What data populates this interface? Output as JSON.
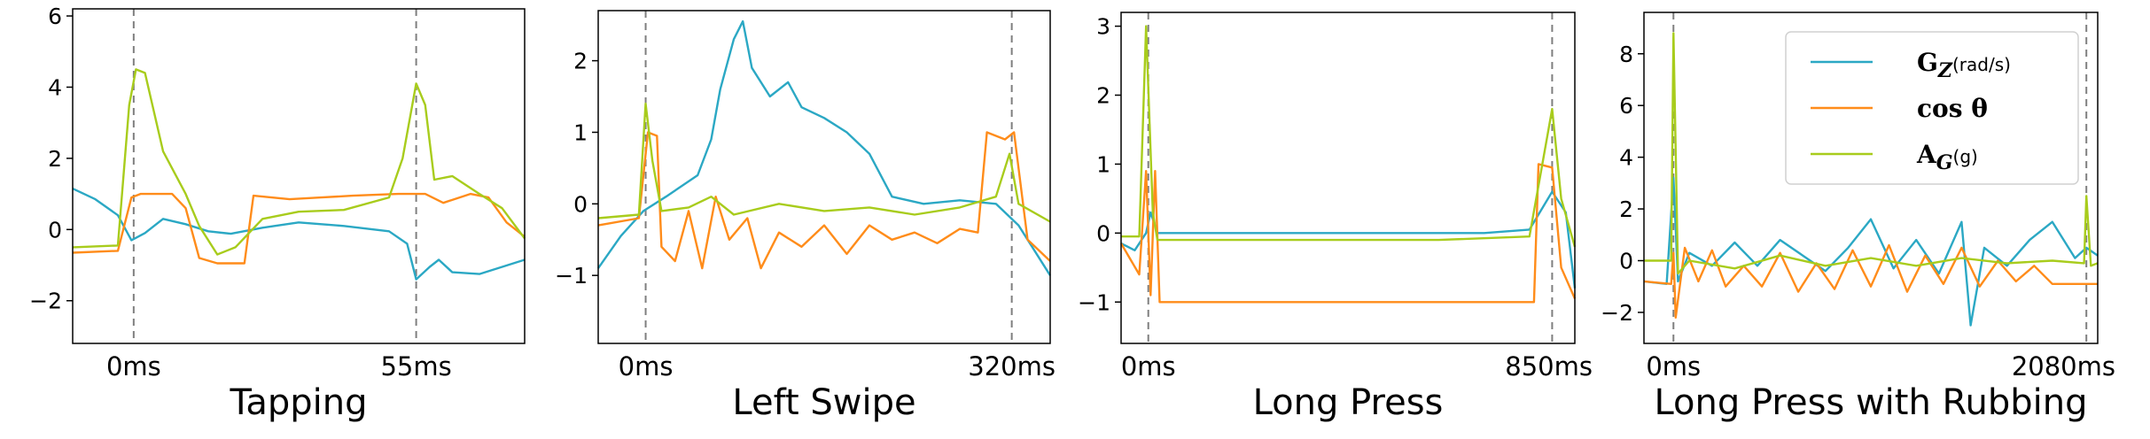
{
  "legend": {
    "entries": [
      {
        "key": "gz",
        "base": "G",
        "sub": "Z",
        "unit": "(rad/s)",
        "color": "#2ba8c4"
      },
      {
        "key": "cos",
        "text": "cos θ",
        "color": "#ff8c1a"
      },
      {
        "key": "ag",
        "base": "A",
        "sub": "G",
        "unit": "(g)",
        "color": "#a8cc1c"
      }
    ]
  },
  "chart_data": [
    {
      "type": "line",
      "title": "Tapping",
      "ylim": [
        -3.2,
        6.2
      ],
      "yticks": [
        -2,
        0,
        2,
        4,
        6
      ],
      "xlim": [
        0,
        1
      ],
      "events": [
        {
          "x": 0.135,
          "label": "0ms"
        },
        {
          "x": 0.76,
          "label": "55ms"
        }
      ],
      "series": [
        {
          "key": "gz",
          "points": [
            [
              0,
              1.15
            ],
            [
              0.05,
              0.85
            ],
            [
              0.1,
              0.4
            ],
            [
              0.13,
              -0.3
            ],
            [
              0.16,
              -0.1
            ],
            [
              0.2,
              0.3
            ],
            [
              0.25,
              0.15
            ],
            [
              0.3,
              -0.05
            ],
            [
              0.35,
              -0.12
            ],
            [
              0.42,
              0.05
            ],
            [
              0.5,
              0.2
            ],
            [
              0.6,
              0.1
            ],
            [
              0.7,
              -0.05
            ],
            [
              0.74,
              -0.4
            ],
            [
              0.76,
              -1.4
            ],
            [
              0.79,
              -1.05
            ],
            [
              0.81,
              -0.85
            ],
            [
              0.84,
              -1.2
            ],
            [
              0.9,
              -1.25
            ],
            [
              1,
              -0.85
            ]
          ]
        },
        {
          "key": "cos",
          "points": [
            [
              0,
              -0.65
            ],
            [
              0.1,
              -0.6
            ],
            [
              0.13,
              0.9
            ],
            [
              0.15,
              1
            ],
            [
              0.22,
              1
            ],
            [
              0.25,
              0.6
            ],
            [
              0.28,
              -0.8
            ],
            [
              0.32,
              -0.95
            ],
            [
              0.38,
              -0.95
            ],
            [
              0.4,
              0.95
            ],
            [
              0.48,
              0.85
            ],
            [
              0.55,
              0.9
            ],
            [
              0.62,
              0.95
            ],
            [
              0.72,
              1
            ],
            [
              0.78,
              1
            ],
            [
              0.82,
              0.75
            ],
            [
              0.88,
              1
            ],
            [
              0.92,
              0.9
            ],
            [
              0.96,
              0.2
            ],
            [
              1,
              -0.2
            ]
          ]
        },
        {
          "key": "ag",
          "points": [
            [
              0,
              -0.5
            ],
            [
              0.1,
              -0.45
            ],
            [
              0.125,
              3.5
            ],
            [
              0.14,
              4.5
            ],
            [
              0.16,
              4.4
            ],
            [
              0.2,
              2.2
            ],
            [
              0.25,
              1.0
            ],
            [
              0.28,
              0.1
            ],
            [
              0.32,
              -0.7
            ],
            [
              0.36,
              -0.5
            ],
            [
              0.42,
              0.3
            ],
            [
              0.5,
              0.5
            ],
            [
              0.6,
              0.55
            ],
            [
              0.7,
              0.9
            ],
            [
              0.73,
              2.0
            ],
            [
              0.76,
              4.1
            ],
            [
              0.78,
              3.5
            ],
            [
              0.8,
              1.4
            ],
            [
              0.84,
              1.5
            ],
            [
              0.9,
              1.0
            ],
            [
              0.95,
              0.6
            ],
            [
              1,
              -0.25
            ]
          ]
        }
      ]
    },
    {
      "type": "line",
      "title": "Left Swipe",
      "ylim": [
        -1.95,
        2.7
      ],
      "yticks": [
        -1,
        0,
        1,
        2
      ],
      "xlim": [
        0,
        1
      ],
      "events": [
        {
          "x": 0.105,
          "label": "0ms"
        },
        {
          "x": 0.915,
          "label": "320ms"
        }
      ],
      "series": [
        {
          "key": "gz",
          "points": [
            [
              0,
              -0.9
            ],
            [
              0.05,
              -0.45
            ],
            [
              0.1,
              -0.1
            ],
            [
              0.15,
              0.1
            ],
            [
              0.22,
              0.4
            ],
            [
              0.25,
              0.9
            ],
            [
              0.27,
              1.6
            ],
            [
              0.3,
              2.3
            ],
            [
              0.32,
              2.55
            ],
            [
              0.34,
              1.9
            ],
            [
              0.38,
              1.5
            ],
            [
              0.42,
              1.7
            ],
            [
              0.45,
              1.35
            ],
            [
              0.5,
              1.2
            ],
            [
              0.55,
              1.0
            ],
            [
              0.6,
              0.7
            ],
            [
              0.65,
              0.1
            ],
            [
              0.72,
              0.0
            ],
            [
              0.8,
              0.05
            ],
            [
              0.88,
              0.0
            ],
            [
              0.93,
              -0.3
            ],
            [
              1,
              -1.0
            ]
          ]
        },
        {
          "key": "cos",
          "points": [
            [
              0,
              -0.3
            ],
            [
              0.09,
              -0.2
            ],
            [
              0.11,
              1.0
            ],
            [
              0.13,
              0.95
            ],
            [
              0.14,
              -0.6
            ],
            [
              0.17,
              -0.8
            ],
            [
              0.2,
              -0.1
            ],
            [
              0.23,
              -0.9
            ],
            [
              0.26,
              0.1
            ],
            [
              0.29,
              -0.5
            ],
            [
              0.33,
              -0.2
            ],
            [
              0.36,
              -0.9
            ],
            [
              0.4,
              -0.4
            ],
            [
              0.45,
              -0.6
            ],
            [
              0.5,
              -0.3
            ],
            [
              0.55,
              -0.7
            ],
            [
              0.6,
              -0.3
            ],
            [
              0.65,
              -0.5
            ],
            [
              0.7,
              -0.4
            ],
            [
              0.75,
              -0.55
            ],
            [
              0.8,
              -0.35
            ],
            [
              0.84,
              -0.4
            ],
            [
              0.86,
              1.0
            ],
            [
              0.9,
              0.9
            ],
            [
              0.92,
              1.0
            ],
            [
              0.95,
              -0.5
            ],
            [
              1,
              -0.8
            ]
          ]
        },
        {
          "key": "ag",
          "points": [
            [
              0,
              -0.2
            ],
            [
              0.09,
              -0.15
            ],
            [
              0.105,
              1.4
            ],
            [
              0.12,
              0.6
            ],
            [
              0.14,
              -0.1
            ],
            [
              0.2,
              -0.05
            ],
            [
              0.25,
              0.1
            ],
            [
              0.3,
              -0.15
            ],
            [
              0.4,
              0.0
            ],
            [
              0.5,
              -0.1
            ],
            [
              0.6,
              -0.05
            ],
            [
              0.7,
              -0.15
            ],
            [
              0.8,
              -0.05
            ],
            [
              0.88,
              0.1
            ],
            [
              0.91,
              0.7
            ],
            [
              0.93,
              0.0
            ],
            [
              1,
              -0.25
            ]
          ]
        }
      ]
    },
    {
      "type": "line",
      "title": "Long Press",
      "ylim": [
        -1.6,
        3.2
      ],
      "yticks": [
        -1,
        0,
        1,
        2,
        3
      ],
      "xlim": [
        0,
        1
      ],
      "events": [
        {
          "x": 0.06,
          "label": "0ms"
        },
        {
          "x": 0.95,
          "label": "850ms"
        }
      ],
      "series": [
        {
          "key": "gz",
          "points": [
            [
              0,
              -0.15
            ],
            [
              0.03,
              -0.25
            ],
            [
              0.055,
              0.0
            ],
            [
              0.065,
              0.3
            ],
            [
              0.08,
              0.0
            ],
            [
              0.2,
              0.0
            ],
            [
              0.4,
              0.0
            ],
            [
              0.6,
              0.0
            ],
            [
              0.8,
              0.0
            ],
            [
              0.9,
              0.05
            ],
            [
              0.95,
              0.6
            ],
            [
              0.98,
              0.3
            ],
            [
              1,
              -0.8
            ]
          ]
        },
        {
          "key": "cos",
          "points": [
            [
              0,
              -0.15
            ],
            [
              0.04,
              -0.6
            ],
            [
              0.055,
              0.9
            ],
            [
              0.065,
              -0.9
            ],
            [
              0.075,
              0.9
            ],
            [
              0.085,
              -1.0
            ],
            [
              0.2,
              -1.0
            ],
            [
              0.4,
              -1.0
            ],
            [
              0.6,
              -1.0
            ],
            [
              0.8,
              -1.0
            ],
            [
              0.91,
              -1.0
            ],
            [
              0.92,
              1.0
            ],
            [
              0.95,
              0.95
            ],
            [
              0.97,
              -0.5
            ],
            [
              1,
              -0.95
            ]
          ]
        },
        {
          "key": "ag",
          "points": [
            [
              0,
              -0.05
            ],
            [
              0.04,
              -0.05
            ],
            [
              0.055,
              3.0
            ],
            [
              0.07,
              0.3
            ],
            [
              0.08,
              -0.1
            ],
            [
              0.3,
              -0.1
            ],
            [
              0.5,
              -0.1
            ],
            [
              0.7,
              -0.1
            ],
            [
              0.9,
              -0.05
            ],
            [
              0.95,
              1.8
            ],
            [
              0.97,
              0.5
            ],
            [
              1,
              -0.2
            ]
          ]
        }
      ]
    },
    {
      "type": "line",
      "title": "Long Press with Rubbing",
      "ylim": [
        -3.2,
        9.6
      ],
      "yticks": [
        -2,
        0,
        2,
        4,
        6,
        8
      ],
      "xlim": [
        0,
        1
      ],
      "events": [
        {
          "x": 0.065,
          "label": "0ms"
        },
        {
          "x": 0.975,
          "label": "2080ms"
        }
      ],
      "series": [
        {
          "key": "gz",
          "points": [
            [
              0,
              -0.8
            ],
            [
              0.05,
              -0.9
            ],
            [
              0.065,
              3.2
            ],
            [
              0.075,
              -0.8
            ],
            [
              0.1,
              0.3
            ],
            [
              0.15,
              -0.2
            ],
            [
              0.2,
              0.7
            ],
            [
              0.25,
              -0.2
            ],
            [
              0.3,
              0.8
            ],
            [
              0.35,
              0.2
            ],
            [
              0.4,
              -0.4
            ],
            [
              0.45,
              0.5
            ],
            [
              0.5,
              1.6
            ],
            [
              0.55,
              -0.3
            ],
            [
              0.6,
              0.8
            ],
            [
              0.65,
              -0.5
            ],
            [
              0.7,
              1.5
            ],
            [
              0.72,
              -2.5
            ],
            [
              0.75,
              0.5
            ],
            [
              0.8,
              -0.2
            ],
            [
              0.85,
              0.8
            ],
            [
              0.9,
              1.5
            ],
            [
              0.95,
              0.1
            ],
            [
              0.975,
              0.5
            ],
            [
              1,
              0.2
            ]
          ]
        },
        {
          "key": "cos",
          "points": [
            [
              0,
              -0.8
            ],
            [
              0.06,
              -0.9
            ],
            [
              0.065,
              0.3
            ],
            [
              0.07,
              -2.2
            ],
            [
              0.09,
              0.5
            ],
            [
              0.12,
              -0.8
            ],
            [
              0.15,
              0.4
            ],
            [
              0.18,
              -1.0
            ],
            [
              0.22,
              -0.2
            ],
            [
              0.26,
              -1.0
            ],
            [
              0.3,
              0.3
            ],
            [
              0.34,
              -1.2
            ],
            [
              0.38,
              -0.1
            ],
            [
              0.42,
              -1.1
            ],
            [
              0.46,
              0.4
            ],
            [
              0.5,
              -1.0
            ],
            [
              0.54,
              0.6
            ],
            [
              0.58,
              -1.2
            ],
            [
              0.62,
              0.2
            ],
            [
              0.66,
              -0.9
            ],
            [
              0.7,
              0.5
            ],
            [
              0.74,
              -1.0
            ],
            [
              0.78,
              0.0
            ],
            [
              0.82,
              -0.8
            ],
            [
              0.86,
              -0.2
            ],
            [
              0.9,
              -0.9
            ],
            [
              0.96,
              -0.9
            ],
            [
              1,
              -0.9
            ]
          ]
        },
        {
          "key": "ag",
          "points": [
            [
              0,
              0.0
            ],
            [
              0.06,
              0.0
            ],
            [
              0.065,
              8.8
            ],
            [
              0.075,
              -0.5
            ],
            [
              0.1,
              0.0
            ],
            [
              0.2,
              -0.3
            ],
            [
              0.3,
              0.2
            ],
            [
              0.4,
              -0.2
            ],
            [
              0.5,
              0.1
            ],
            [
              0.6,
              -0.2
            ],
            [
              0.7,
              0.1
            ],
            [
              0.8,
              -0.1
            ],
            [
              0.9,
              0.0
            ],
            [
              0.97,
              -0.1
            ],
            [
              0.975,
              2.5
            ],
            [
              0.985,
              -0.2
            ],
            [
              1,
              -0.1
            ]
          ]
        }
      ]
    }
  ]
}
